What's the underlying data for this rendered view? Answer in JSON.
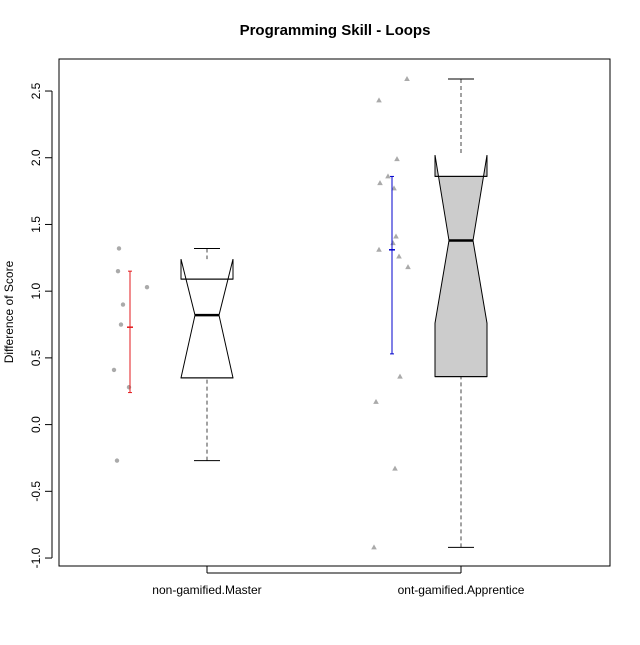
{
  "chart_data": {
    "type": "boxplot",
    "title": "Programming Skill - Loops",
    "xlabel": "",
    "ylabel": "Difference of Score",
    "ylim": [
      -1.05,
      2.75
    ],
    "yticks": [
      -1.0,
      -0.5,
      0.0,
      0.5,
      1.0,
      1.5,
      2.0,
      2.5
    ],
    "ytick_labels": [
      "-1.0",
      "-0.5",
      "0.0",
      "0.5",
      "1.0",
      "1.5",
      "2.0",
      "2.5"
    ],
    "grid": false,
    "legend": "none",
    "categories": [
      "non-gamified.Master",
      "ont-gamified.Apprentice"
    ],
    "boxes": [
      {
        "name": "non-gamified.Master",
        "whisker_low": -0.27,
        "q1": 0.35,
        "median": 0.82,
        "q3": 1.09,
        "whisker_high": 1.32,
        "notch_low": 0.35,
        "notch_high": 1.24,
        "fill": "#ffffff",
        "points_marker": "circle",
        "points": [
          -0.27,
          0.28,
          0.41,
          0.75,
          0.9,
          1.03,
          1.15,
          1.32
        ],
        "mean": 0.73,
        "ci_low": 0.24,
        "ci_high": 1.15,
        "ci_color": "#e31a1c"
      },
      {
        "name": "ont-gamified.Apprentice",
        "whisker_low": -0.92,
        "q1": 0.36,
        "median": 1.38,
        "q3": 1.86,
        "whisker_high": 2.59,
        "notch_low": 0.76,
        "notch_high": 2.02,
        "fill": "#cccccc",
        "points_marker": "triangle",
        "points": [
          -0.92,
          -0.33,
          0.17,
          0.36,
          1.18,
          1.26,
          1.31,
          1.36,
          1.41,
          1.77,
          1.81,
          1.86,
          1.99,
          2.43,
          2.59
        ],
        "mean": 1.31,
        "ci_low": 0.53,
        "ci_high": 1.86,
        "ci_color": "#0000cc"
      }
    ],
    "point_color": "#aaaaaa"
  }
}
